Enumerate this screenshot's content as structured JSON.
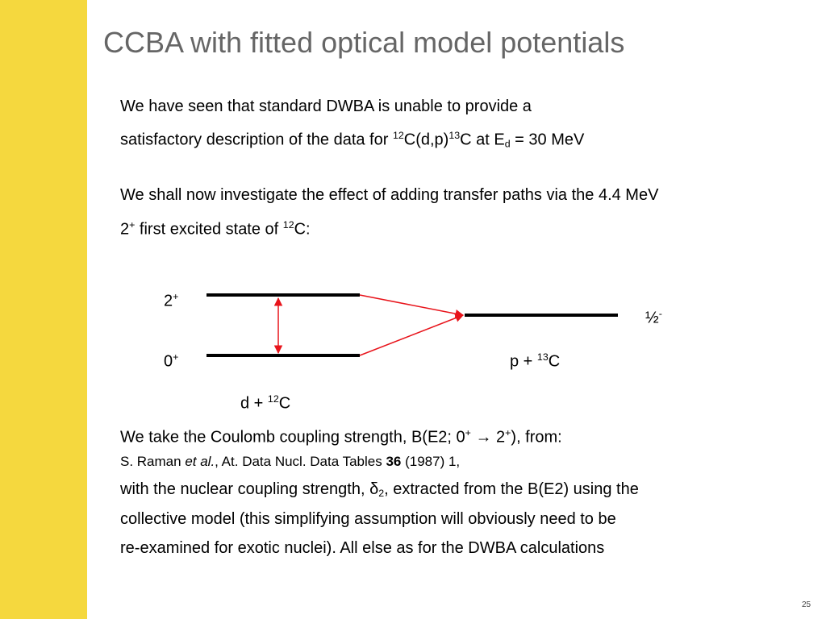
{
  "title": "CCBA with fitted optical model potentials",
  "intro": {
    "lines": [
      [
        "We have seen that standard DWBA is unable to provide a"
      ],
      [
        "satisfactory description of the data for ",
        "12",
        "C(d,p)",
        "13",
        "C at E",
        "d",
        " = 30 MeV"
      ]
    ]
  },
  "plan": {
    "lines": [
      [
        "We shall now investigate the effect of adding transfer paths via the 4.4 MeV"
      ],
      [
        "2",
        "+",
        " first excited state of ",
        "12",
        "C:"
      ]
    ]
  },
  "diagram": {
    "labels": [
      [
        "2",
        "+"
      ],
      [
        "0",
        "+"
      ],
      [
        "½",
        "-"
      ],
      [
        "p + ",
        "13",
        "C"
      ],
      [
        "d + ",
        "12",
        "C"
      ]
    ]
  },
  "method": {
    "lines": [
      [
        "We take the Coulomb coupling strength, B(E2; 0",
        "+",
        " → 2",
        "+",
        "), from:"
      ],
      [
        "S. Raman ",
        "et al.",
        ", At. Data Nucl. Data Tables ",
        "36",
        " (1987) 1,"
      ],
      [
        "with the nuclear coupling strength, δ",
        "2",
        ", extracted from the B(E2) using the"
      ],
      [
        "collective model (this simplifying assumption will obviously need to be"
      ],
      [
        "re-examined for exotic nuclei). All else as for the DWBA calculations"
      ]
    ]
  },
  "page_number": "25"
}
